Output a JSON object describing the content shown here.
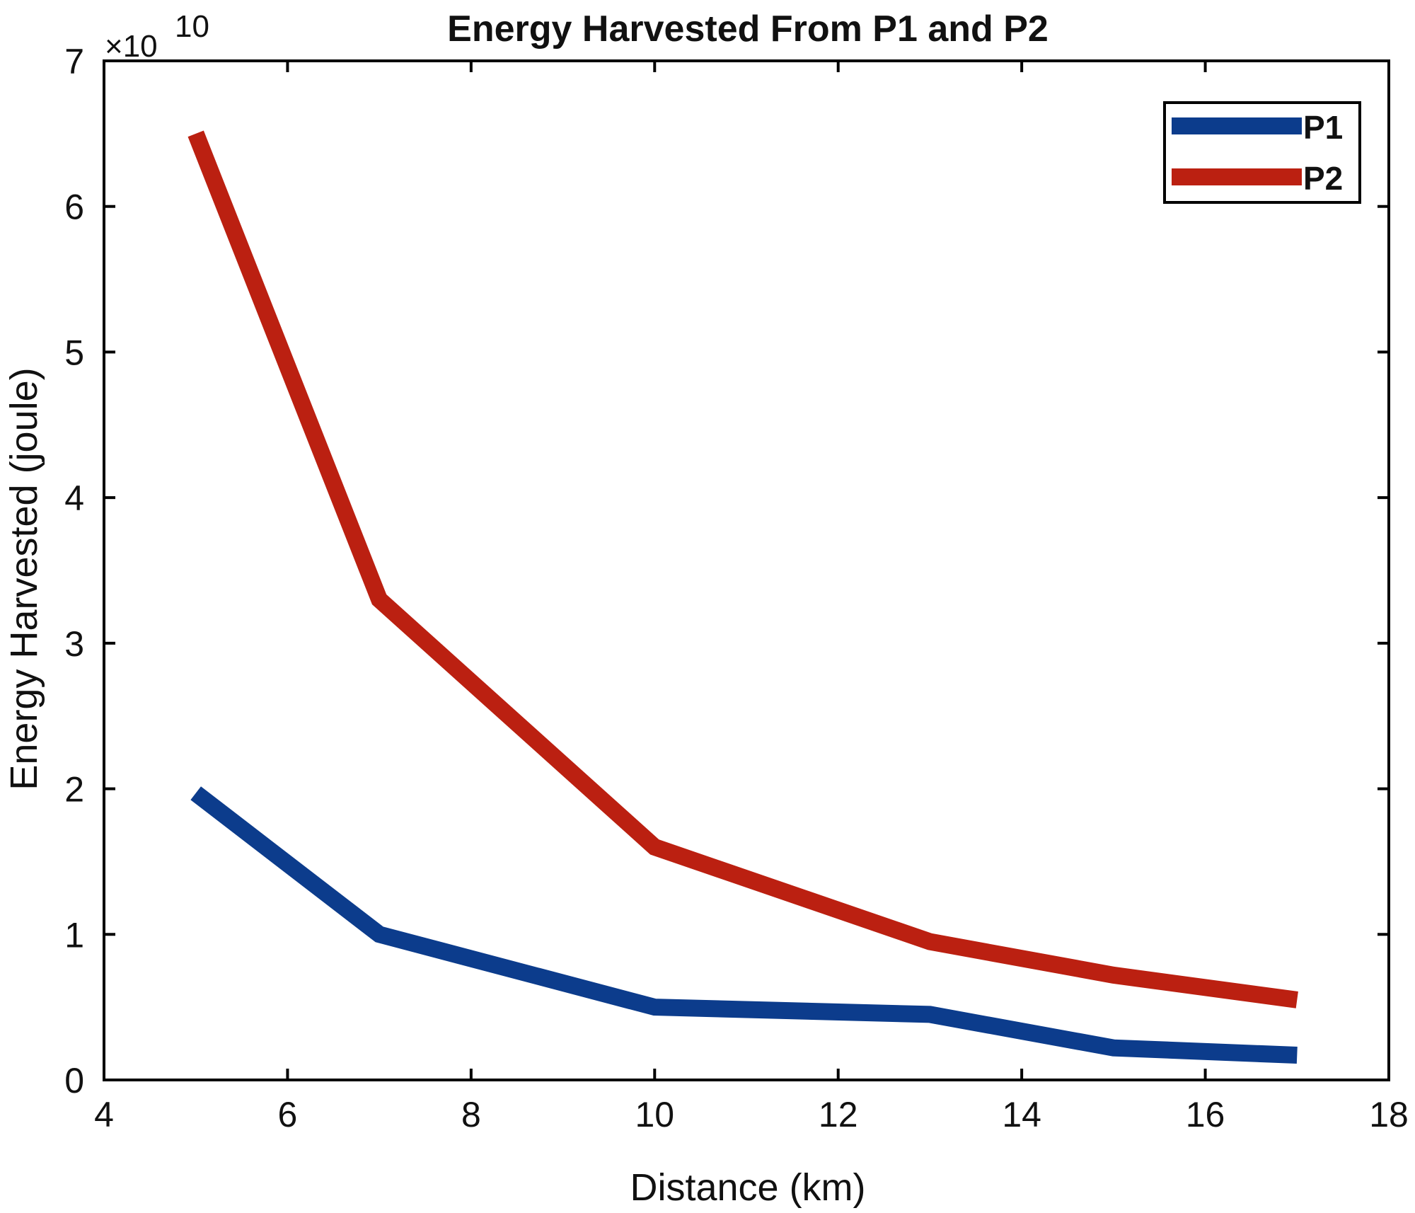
{
  "chart_data": {
    "type": "line",
    "title": "Energy Harvested From P1 and P2",
    "xlabel": "Distance (km)",
    "ylabel": "Energy Harvested (joule)",
    "y_multiplier_label": "×10",
    "y_multiplier_exponent": "10",
    "xlim": [
      4,
      18
    ],
    "ylim": [
      0,
      7
    ],
    "x_ticks": [
      4,
      6,
      8,
      10,
      12,
      14,
      16,
      18
    ],
    "y_ticks": [
      0,
      1,
      2,
      3,
      4,
      5,
      6,
      7
    ],
    "grid": false,
    "legend_position": "top-right",
    "series": [
      {
        "name": "P1",
        "color": "#0c3c8c",
        "x": [
          5,
          7,
          10,
          13,
          15,
          17
        ],
        "y": [
          1.97,
          1.0,
          0.5,
          0.45,
          0.22,
          0.17
        ]
      },
      {
        "name": "P2",
        "color": "#bb2011",
        "x": [
          5,
          7,
          10,
          13,
          15,
          17
        ],
        "y": [
          6.5,
          3.3,
          1.6,
          0.95,
          0.72,
          0.55
        ]
      }
    ]
  }
}
